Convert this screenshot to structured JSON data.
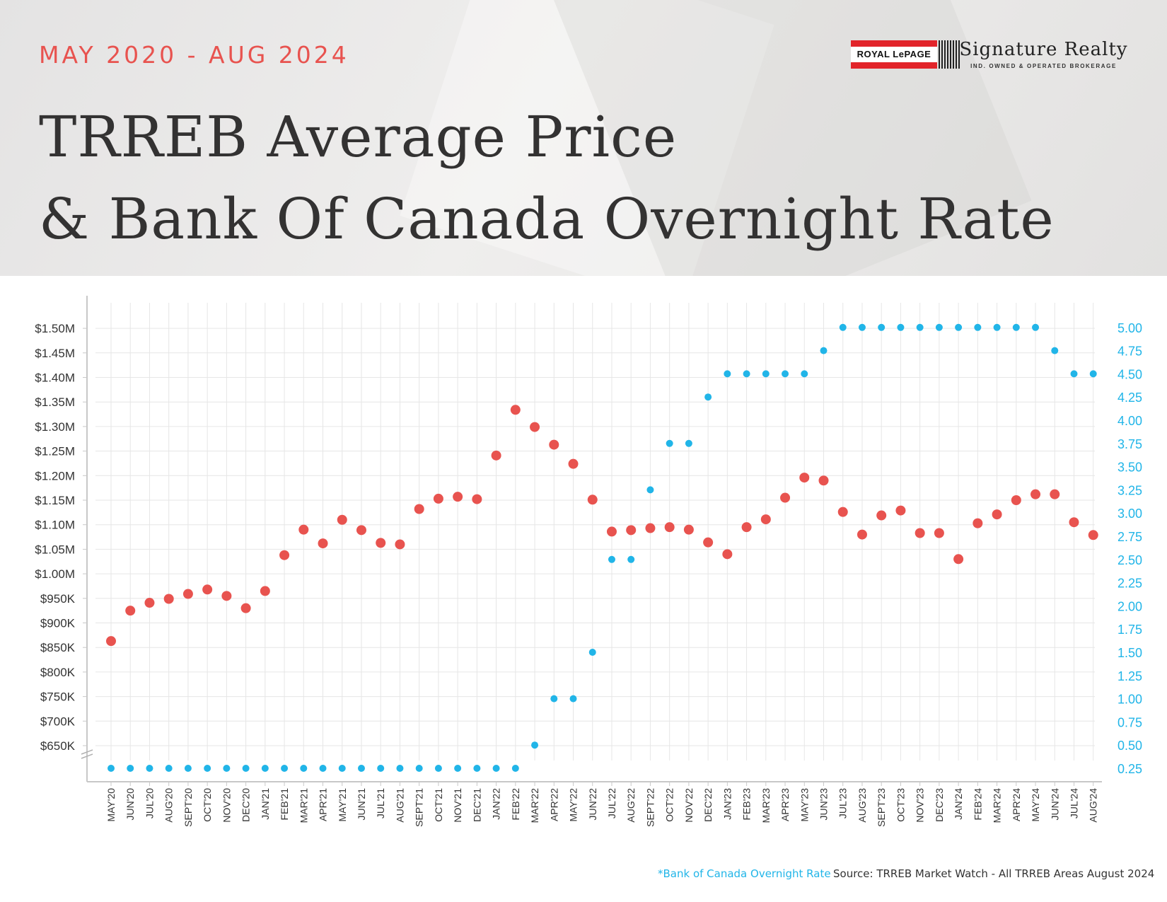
{
  "header": {
    "subtitle": "MAY 2020 - AUG 2024",
    "title_line1": "TRREB Average Price",
    "title_line2": "& Bank Of Canada Overnight Rate"
  },
  "logo": {
    "royal_lepage": "ROYAL LePAGE",
    "name": "Signature Realty",
    "tagline": "IND. OWNED & OPERATED BROKERAGE"
  },
  "footer": {
    "note": "*Bank of Canada Overnight Rate",
    "source": "Source: TRREB Market Watch - All TRREB Areas August 2024"
  },
  "colors": {
    "price": "#e8534f",
    "rate": "#21b5e8",
    "grid": "#e6e6e6",
    "axis": "#c8c8c8"
  },
  "chart_data": {
    "type": "scatter",
    "categories": [
      "MAY'20",
      "JUN'20",
      "JUL'20",
      "AUG'20",
      "SEPT'20",
      "OCT'20",
      "NOV'20",
      "DEC'20",
      "JAN'21",
      "FEB'21",
      "MAR'21",
      "APR'21",
      "MAY'21",
      "JUN'21",
      "JUL'21",
      "AUG'21",
      "SEPT'21",
      "OCT'21",
      "NOV'21",
      "DEC'21",
      "JAN'22",
      "FEB'22",
      "MAR'22",
      "APR'22",
      "MAY'22",
      "JUN'22",
      "JUL'22",
      "AUG'22",
      "SEPT'22",
      "OCT'22",
      "NOV'22",
      "DEC'22",
      "JAN'23",
      "FEB'23",
      "MAR'23",
      "APR'23",
      "MAY'23",
      "JUN'23",
      "JUL'23",
      "AUG'23",
      "SEPT'23",
      "OCT'23",
      "NOV'23",
      "DEC'23",
      "JAN'24",
      "FEB'24",
      "MAR'24",
      "APR'24",
      "MAY'24",
      "JUN'24",
      "JUL'24",
      "AUG'24"
    ],
    "series": [
      {
        "axis": "left",
        "values": [
          863000,
          925000,
          941000,
          949000,
          959000,
          968000,
          955000,
          930000,
          965000,
          1038000,
          1090000,
          1062000,
          1110000,
          1089000,
          1063000,
          1060000,
          1132000,
          1153000,
          1157000,
          1152000,
          1241000,
          1334000,
          1299000,
          1263000,
          1224000,
          1151000,
          1086000,
          1089000,
          1093000,
          1095000,
          1090000,
          1064000,
          1040000,
          1095000,
          1111000,
          1155000,
          1196000,
          1190000,
          1126000,
          1080000,
          1119000,
          1129000,
          1083000,
          1083000,
          1030000,
          1103000,
          1121000,
          1150000,
          1162000,
          1162000,
          1105000,
          1079000
        ]
      },
      {
        "axis": "right",
        "values": [
          0.25,
          0.25,
          0.25,
          0.25,
          0.25,
          0.25,
          0.25,
          0.25,
          0.25,
          0.25,
          0.25,
          0.25,
          0.25,
          0.25,
          0.25,
          0.25,
          0.25,
          0.25,
          0.25,
          0.25,
          0.25,
          0.25,
          0.5,
          1.0,
          1.0,
          1.5,
          2.5,
          2.5,
          3.25,
          3.75,
          3.75,
          4.25,
          4.5,
          4.5,
          4.5,
          4.5,
          4.5,
          4.75,
          5.0,
          5.0,
          5.0,
          5.0,
          5.0,
          5.0,
          5.0,
          5.0,
          5.0,
          5.0,
          5.0,
          4.75,
          4.5,
          4.5
        ]
      }
    ],
    "y_left": {
      "ticks": [
        650000,
        700000,
        750000,
        800000,
        850000,
        900000,
        950000,
        1000000,
        1050000,
        1100000,
        1150000,
        1200000,
        1250000,
        1300000,
        1350000,
        1400000,
        1450000,
        1500000
      ],
      "tick_labels": [
        "$650K",
        "$700K",
        "$750K",
        "$800K",
        "$850K",
        "$900K",
        "$950K",
        "$1.00M",
        "$1.05M",
        "$1.10M",
        "$1.15M",
        "$1.20M",
        "$1.25M",
        "$1.30M",
        "$1.35M",
        "$1.40M",
        "$1.45M",
        "$1.50M"
      ],
      "axis_break": true
    },
    "y_right": {
      "ticks": [
        0.25,
        0.5,
        0.75,
        1.0,
        1.25,
        1.5,
        1.75,
        2.0,
        2.25,
        2.5,
        2.75,
        3.0,
        3.25,
        3.5,
        3.75,
        4.0,
        4.25,
        4.5,
        4.75,
        5.0
      ],
      "tick_labels": [
        "0.25",
        "0.50",
        "0.75",
        "1.00",
        "1.25",
        "1.50",
        "1.75",
        "2.00",
        "2.25",
        "2.50",
        "2.75",
        "3.00",
        "3.25",
        "3.50",
        "3.75",
        "4.00",
        "4.25",
        "4.50",
        "4.75",
        "5.00"
      ]
    },
    "grid": true
  }
}
